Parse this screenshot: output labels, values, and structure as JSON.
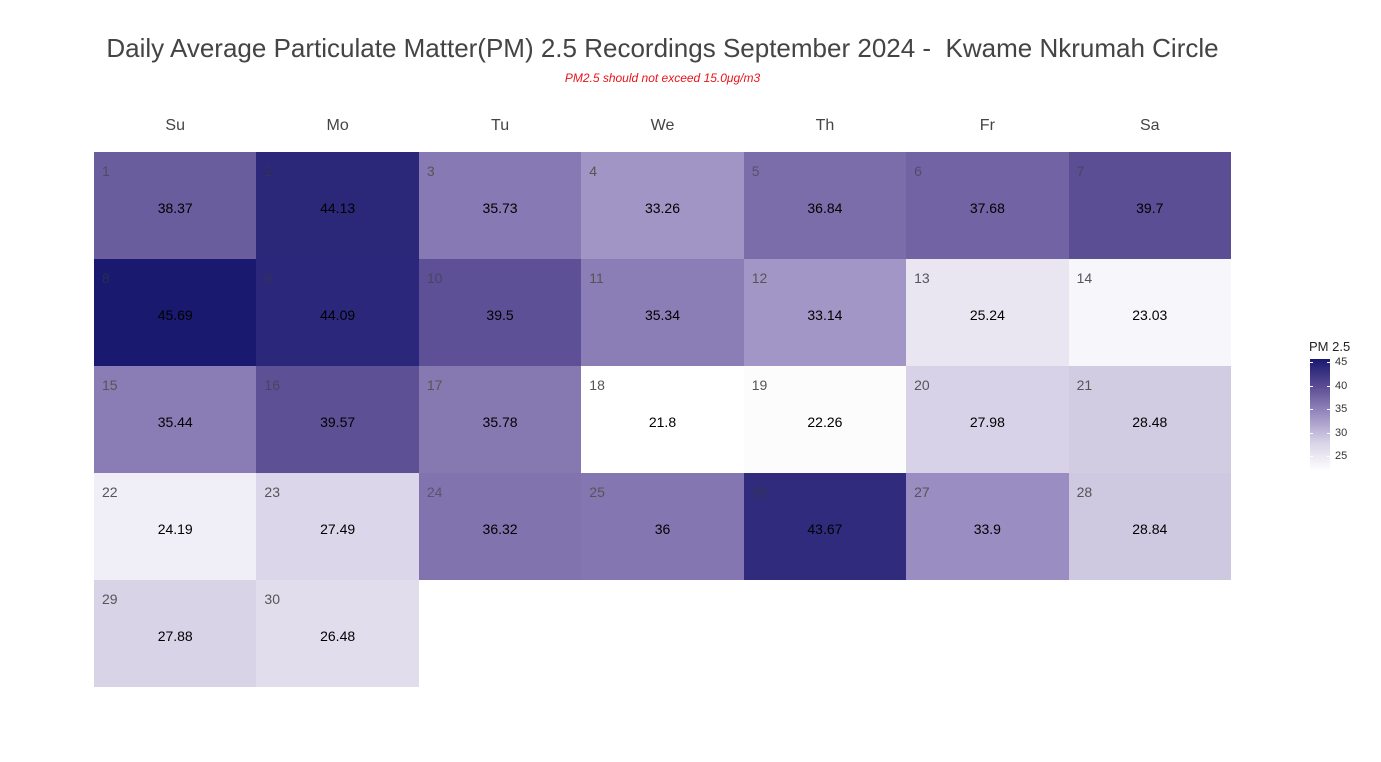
{
  "title": "Daily Average Particulate Matter(PM) 2.5 Recordings September 2024 -  Kwame Nkrumah Circle",
  "subtitle": "PM2.5 should not exceed 15.0μg/m3",
  "weekdays": [
    "Su",
    "Mo",
    "Tu",
    "We",
    "Th",
    "Fr",
    "Sa"
  ],
  "legend": {
    "title": "PM 2.5",
    "ticks": [
      25,
      30,
      35,
      40,
      45
    ],
    "range": [
      21.8,
      45.69
    ]
  },
  "colors": {
    "low": "#ffffff",
    "high": "#191970"
  },
  "chart_data": {
    "type": "heatmap",
    "title": "Daily Average Particulate Matter(PM) 2.5 Recordings September 2024 -  Kwame Nkrumah Circle",
    "subtitle": "PM2.5 should not exceed 15.0μg/m3",
    "month": "September 2024",
    "first_weekday": "Su",
    "days": [
      {
        "day": 1,
        "weekday": "Su",
        "week": 1,
        "value": 38.37
      },
      {
        "day": 2,
        "weekday": "Mo",
        "week": 1,
        "value": 44.13
      },
      {
        "day": 3,
        "weekday": "Tu",
        "week": 1,
        "value": 35.73
      },
      {
        "day": 4,
        "weekday": "We",
        "week": 1,
        "value": 33.26
      },
      {
        "day": 5,
        "weekday": "Th",
        "week": 1,
        "value": 36.84
      },
      {
        "day": 6,
        "weekday": "Fr",
        "week": 1,
        "value": 37.68
      },
      {
        "day": 7,
        "weekday": "Sa",
        "week": 1,
        "value": 39.7
      },
      {
        "day": 8,
        "weekday": "Su",
        "week": 2,
        "value": 45.69
      },
      {
        "day": 9,
        "weekday": "Mo",
        "week": 2,
        "value": 44.09
      },
      {
        "day": 10,
        "weekday": "Tu",
        "week": 2,
        "value": 39.5
      },
      {
        "day": 11,
        "weekday": "We",
        "week": 2,
        "value": 35.34
      },
      {
        "day": 12,
        "weekday": "Th",
        "week": 2,
        "value": 33.14
      },
      {
        "day": 13,
        "weekday": "Fr",
        "week": 2,
        "value": 25.24
      },
      {
        "day": 14,
        "weekday": "Sa",
        "week": 2,
        "value": 23.03
      },
      {
        "day": 15,
        "weekday": "Su",
        "week": 3,
        "value": 35.44
      },
      {
        "day": 16,
        "weekday": "Mo",
        "week": 3,
        "value": 39.57
      },
      {
        "day": 17,
        "weekday": "Tu",
        "week": 3,
        "value": 35.78
      },
      {
        "day": 18,
        "weekday": "We",
        "week": 3,
        "value": 21.8
      },
      {
        "day": 19,
        "weekday": "Th",
        "week": 3,
        "value": 22.26
      },
      {
        "day": 20,
        "weekday": "Fr",
        "week": 3,
        "value": 27.98
      },
      {
        "day": 21,
        "weekday": "Sa",
        "week": 3,
        "value": 28.48
      },
      {
        "day": 22,
        "weekday": "Su",
        "week": 4,
        "value": 24.19
      },
      {
        "day": 23,
        "weekday": "Mo",
        "week": 4,
        "value": 27.49
      },
      {
        "day": 24,
        "weekday": "Tu",
        "week": 4,
        "value": 36.32
      },
      {
        "day": 25,
        "weekday": "We",
        "week": 4,
        "value": 36
      },
      {
        "day": 26,
        "weekday": "Th",
        "week": 4,
        "value": 43.67
      },
      {
        "day": 27,
        "weekday": "Fr",
        "week": 4,
        "value": 33.9
      },
      {
        "day": 28,
        "weekday": "Sa",
        "week": 4,
        "value": 28.84
      },
      {
        "day": 29,
        "weekday": "Su",
        "week": 5,
        "value": 27.88
      },
      {
        "day": 30,
        "weekday": "Mo",
        "week": 5,
        "value": 26.48
      }
    ],
    "legend_title": "PM 2.5"
  }
}
